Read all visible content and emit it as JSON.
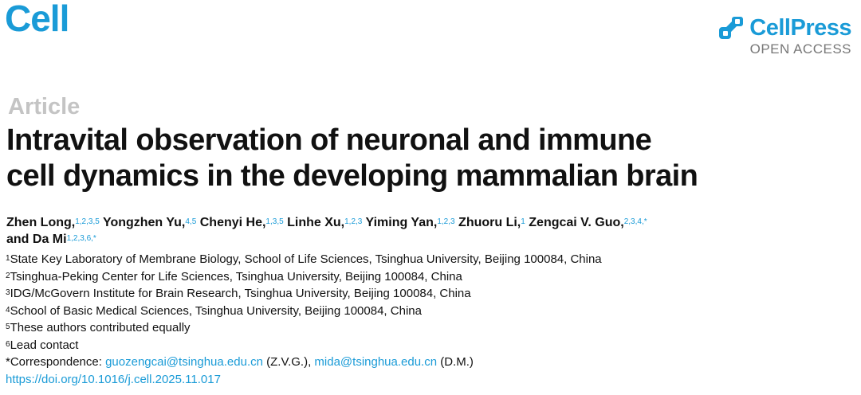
{
  "header": {
    "journal": "Cell",
    "brand": "CellPress",
    "brand_sub": "OPEN ACCESS"
  },
  "article": {
    "type_label": "Article",
    "title_line1": "Intravital observation of neuronal and immune",
    "title_line2": "cell dynamics in the developing mammalian brain"
  },
  "authors": [
    {
      "name": "Zhen Long,",
      "sup": "1,2,3,5"
    },
    {
      "name": "Yongzhen Yu,",
      "sup": "4,5"
    },
    {
      "name": "Chenyi He,",
      "sup": "1,3,5"
    },
    {
      "name": "Linhe Xu,",
      "sup": "1,2,3"
    },
    {
      "name": "Yiming Yan,",
      "sup": "1,2,3"
    },
    {
      "name": "Zhuoru Li,",
      "sup": "1"
    },
    {
      "name": "Zengcai V. Guo,",
      "sup": "2,3,4,*"
    },
    {
      "name": "and Da Mi",
      "sup": "1,2,3,6,*"
    }
  ],
  "affiliations": [
    {
      "sup": "1",
      "text": "State Key Laboratory of Membrane Biology, School of Life Sciences, Tsinghua University, Beijing 100084, China"
    },
    {
      "sup": "2",
      "text": "Tsinghua-Peking Center for Life Sciences, Tsinghua University, Beijing 100084, China"
    },
    {
      "sup": "3",
      "text": "IDG/McGovern Institute for Brain Research, Tsinghua University, Beijing 100084, China"
    },
    {
      "sup": "4",
      "text": "School of Basic Medical Sciences, Tsinghua University, Beijing 100084, China"
    },
    {
      "sup": "5",
      "text": "These authors contributed equally"
    },
    {
      "sup": "6",
      "text": "Lead contact"
    }
  ],
  "correspondence": {
    "label": "*Correspondence: ",
    "email1": "guozengcai@tsinghua.edu.cn",
    "initials1": " (Z.V.G.), ",
    "email2": "mida@tsinghua.edu.cn",
    "initials2": " (D.M.)"
  },
  "doi": "https://doi.org/10.1016/j.cell.2025.11.017",
  "colors": {
    "accent": "#1a9bd7",
    "label_gray": "#c4c4c4",
    "text": "#111111"
  }
}
